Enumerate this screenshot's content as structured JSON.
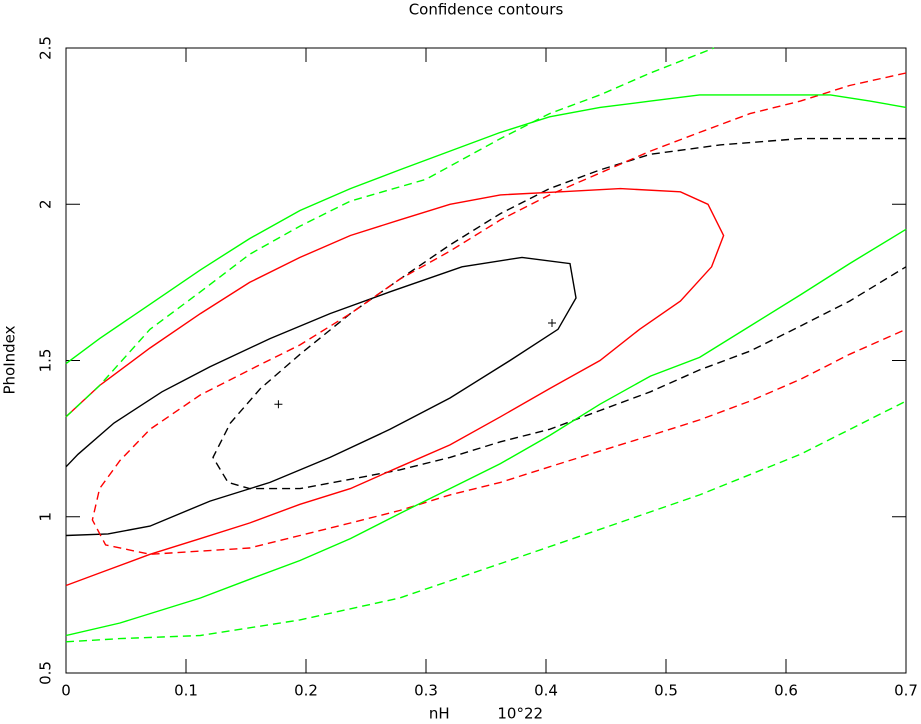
{
  "chart_data": {
    "type": "line",
    "title": "Confidence contours",
    "xlabel": "nH          10°22",
    "ylabel": "PhoIndex",
    "xlim": [
      0,
      0.7
    ],
    "ylim": [
      0.5,
      2.5
    ],
    "xticks": [
      0,
      0.1,
      0.2,
      0.3,
      0.4,
      0.5,
      0.6,
      0.7
    ],
    "yticks": [
      0.5,
      1,
      1.5,
      2,
      2.5
    ],
    "series": [
      {
        "color": "#000000",
        "dashed": false,
        "x": [
          0,
          0.01,
          0.04,
          0.08,
          0.12,
          0.17,
          0.22,
          0.27,
          0.33,
          0.38,
          0.42,
          0.425,
          0.41,
          0.37,
          0.32,
          0.27,
          0.22,
          0.17,
          0.12,
          0.07,
          0.035,
          0
        ],
        "y": [
          1.16,
          1.2,
          1.3,
          1.4,
          1.48,
          1.57,
          1.65,
          1.72,
          1.8,
          1.83,
          1.81,
          1.7,
          1.6,
          1.5,
          1.38,
          1.28,
          1.19,
          1.11,
          1.05,
          0.97,
          0.945,
          0.94
        ]
      },
      {
        "color": "#000000",
        "dashed": true,
        "x": [
          0.7,
          0.653,
          0.612,
          0.545,
          0.487,
          0.445,
          0.403,
          0.362,
          0.32,
          0.278,
          0.237,
          0.195,
          0.162,
          0.137,
          0.1225,
          0.135,
          0.153,
          0.195,
          0.237,
          0.278,
          0.32,
          0.362,
          0.403,
          0.445,
          0.487,
          0.528,
          0.57,
          0.612,
          0.653,
          0.7
        ],
        "y": [
          2.21,
          2.21,
          2.21,
          2.19,
          2.16,
          2.11,
          2.05,
          1.97,
          1.87,
          1.76,
          1.65,
          1.52,
          1.41,
          1.3,
          1.19,
          1.11,
          1.09,
          1.09,
          1.12,
          1.15,
          1.19,
          1.24,
          1.28,
          1.34,
          1.4,
          1.47,
          1.53,
          1.61,
          1.69,
          1.8
        ]
      },
      {
        "color": "#ff0000",
        "dashed": false,
        "x": [
          0,
          0.028,
          0.07,
          0.112,
          0.153,
          0.195,
          0.237,
          0.278,
          0.32,
          0.362,
          0.412,
          0.462,
          0.512,
          0.535,
          0.548,
          0.538,
          0.512,
          0.478,
          0.445,
          0.403,
          0.362,
          0.32,
          0.278,
          0.237,
          0.195,
          0.153,
          0.112,
          0.07,
          0.028,
          0
        ],
        "y": [
          1.32,
          1.42,
          1.54,
          1.65,
          1.75,
          1.83,
          1.9,
          1.95,
          2.0,
          2.03,
          2.04,
          2.05,
          2.04,
          2.0,
          1.9,
          1.8,
          1.69,
          1.6,
          1.5,
          1.41,
          1.32,
          1.23,
          1.16,
          1.09,
          1.04,
          0.98,
          0.93,
          0.88,
          0.82,
          0.78
        ]
      },
      {
        "color": "#ff0000",
        "dashed": true,
        "x": [
          0.7,
          0.653,
          0.612,
          0.57,
          0.528,
          0.487,
          0.445,
          0.403,
          0.362,
          0.32,
          0.278,
          0.237,
          0.195,
          0.153,
          0.112,
          0.07,
          0.045,
          0.028,
          0.022,
          0.033,
          0.07,
          0.112,
          0.153,
          0.195,
          0.237,
          0.278,
          0.32,
          0.362,
          0.403,
          0.445,
          0.487,
          0.528,
          0.57,
          0.612,
          0.653,
          0.7
        ],
        "y": [
          2.42,
          2.38,
          2.33,
          2.29,
          2.23,
          2.17,
          2.1,
          2.03,
          1.95,
          1.85,
          1.76,
          1.65,
          1.55,
          1.47,
          1.39,
          1.28,
          1.18,
          1.09,
          0.99,
          0.91,
          0.88,
          0.89,
          0.9,
          0.94,
          0.98,
          1.02,
          1.07,
          1.11,
          1.16,
          1.21,
          1.26,
          1.31,
          1.37,
          1.44,
          1.52,
          1.6
        ]
      },
      {
        "color": "#00ff00",
        "dashed": false,
        "x": [
          0,
          0.028,
          0.07,
          0.112,
          0.153,
          0.195,
          0.237,
          0.278,
          0.32,
          0.362,
          0.403,
          0.445,
          0.487,
          0.528,
          0.57,
          0.603,
          0.637,
          0.67,
          0.7,
          null,
          0,
          0.045,
          0.112,
          0.153,
          0.195,
          0.237,
          0.278,
          0.32,
          0.362,
          0.403,
          0.445,
          0.487,
          0.528,
          0.57,
          0.612,
          0.653,
          0.7
        ],
        "y": [
          1.49,
          1.57,
          1.68,
          1.79,
          1.89,
          1.98,
          2.05,
          2.11,
          2.17,
          2.23,
          2.28,
          2.31,
          2.33,
          2.35,
          2.35,
          2.35,
          2.35,
          2.33,
          2.31,
          null,
          0.62,
          0.66,
          0.74,
          0.8,
          0.86,
          0.93,
          1.01,
          1.09,
          1.17,
          1.26,
          1.36,
          1.45,
          1.51,
          1.61,
          1.71,
          1.81,
          1.92
        ]
      },
      {
        "color": "#00ff00",
        "dashed": true,
        "x": [
          0,
          0.028,
          0.07,
          0.112,
          0.153,
          0.195,
          0.237,
          0.3,
          0.362,
          0.403,
          0.445,
          0.487,
          0.54,
          null,
          0,
          0.045,
          0.112,
          0.195,
          0.278,
          0.362,
          0.445,
          0.528,
          0.612,
          0.7
        ],
        "y": [
          1.32,
          1.42,
          1.6,
          1.72,
          1.84,
          1.93,
          2.01,
          2.08,
          2.21,
          2.29,
          2.35,
          2.42,
          2.5,
          null,
          0.6,
          0.61,
          0.62,
          0.67,
          0.74,
          0.85,
          0.96,
          1.07,
          1.2,
          1.37
        ]
      }
    ],
    "best_fits": {
      "color": "#000000",
      "x": [
        0.177,
        0.405
      ],
      "y": [
        1.36,
        1.62
      ]
    }
  }
}
